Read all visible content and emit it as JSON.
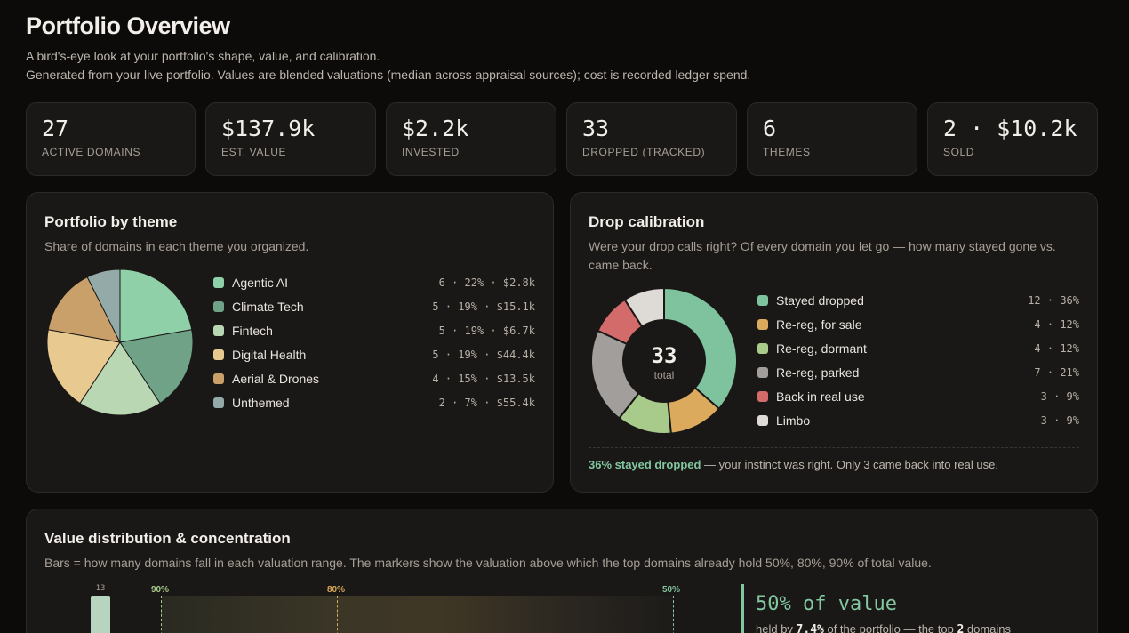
{
  "header": {
    "title": "Portfolio Overview",
    "subtitle1": "A bird's-eye look at your portfolio's shape, value, and calibration.",
    "subtitle2": "Generated from your live portfolio. Values are blended valuations (median across appraisal sources); cost is recorded ledger spend."
  },
  "kpis": [
    {
      "value": "27",
      "label": "ACTIVE DOMAINS"
    },
    {
      "value": "$137.9k",
      "label": "EST. VALUE"
    },
    {
      "value": "$2.2k",
      "label": "INVESTED"
    },
    {
      "value": "33",
      "label": "DROPPED (TRACKED)"
    },
    {
      "value": "6",
      "label": "THEMES"
    },
    {
      "value": "2 · $10.2k",
      "label": "SOLD"
    }
  ],
  "theme_card": {
    "title": "Portfolio by theme",
    "desc": "Share of domains in each theme you organized.",
    "items": [
      {
        "name": "Agentic AI",
        "stats": "6 · 22% · $2.8k",
        "count": 6,
        "color": "#8fd0a8"
      },
      {
        "name": "Climate Tech",
        "stats": "5 · 19% · $15.1k",
        "count": 5,
        "color": "#6fa287"
      },
      {
        "name": "Fintech",
        "stats": "5 · 19% · $6.7k",
        "count": 5,
        "color": "#b9d7b2"
      },
      {
        "name": "Digital Health",
        "stats": "5 · 19% · $44.4k",
        "count": 5,
        "color": "#e8c98f"
      },
      {
        "name": "Aerial & Drones",
        "stats": "4 · 15% · $13.5k",
        "count": 4,
        "color": "#c9a06a"
      },
      {
        "name": "Unthemed",
        "stats": "2 · 7% · $55.4k",
        "count": 2,
        "color": "#93aaa8"
      }
    ]
  },
  "drop_card": {
    "title": "Drop calibration",
    "desc": "Were your drop calls right? Of every domain you let go — how many stayed gone vs. came back.",
    "total": "33",
    "total_label": "total",
    "items": [
      {
        "name": "Stayed dropped",
        "stats": "12 · 36%",
        "count": 12,
        "color": "#7ec39d"
      },
      {
        "name": "Re-reg, for sale",
        "stats": "4 · 12%",
        "count": 4,
        "color": "#dcaa5c"
      },
      {
        "name": "Re-reg, dormant",
        "stats": "4 · 12%",
        "count": 4,
        "color": "#a8cb8c"
      },
      {
        "name": "Re-reg, parked",
        "stats": "7 · 21%",
        "count": 7,
        "color": "#a29e9b"
      },
      {
        "name": "Back in real use",
        "stats": "3 · 9%",
        "count": 3,
        "color": "#d36b6b"
      },
      {
        "name": "Limbo",
        "stats": "3 · 9%",
        "count": 3,
        "color": "#dedad6"
      }
    ],
    "note_highlight": "36% stayed dropped",
    "note_rest": " — your instinct was right. Only 3 came back into real use."
  },
  "value_card": {
    "title": "Value distribution & concentration",
    "desc": "Bars = how many domains fall in each valuation range. The markers show the valuation above which the top domains already hold 50%, 80%, 90% of total value.",
    "first_bar_count": "13",
    "markers": {
      "m90": "90%",
      "m80": "80%",
      "m50": "50%"
    },
    "big_pct": "50% of value",
    "held_pre": "held by ",
    "held_pct": "7.4%",
    "held_mid": " of the portfolio — the top ",
    "held_n": "2",
    "held_post": " domains"
  },
  "colors": {
    "accent": "#82c7a0",
    "bg": "#0c0b0a",
    "card": "#1a1816"
  }
}
